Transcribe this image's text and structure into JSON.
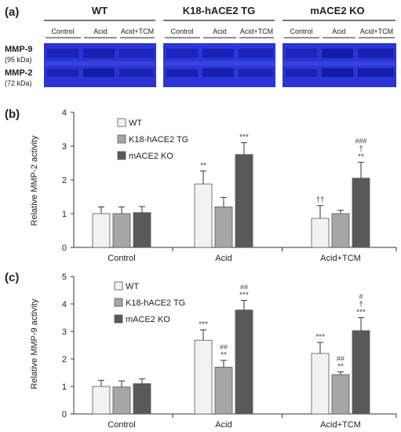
{
  "panel_a": {
    "label": "(a)",
    "groups": [
      "WT",
      "K18-hACE2 TG",
      "mACE2 KO"
    ],
    "lanes": [
      "Control",
      "Acid",
      "Acid+TCM"
    ],
    "bands": [
      {
        "name": "MMP-9",
        "size": "(95 kDa)"
      },
      {
        "name": "MMP-2",
        "size": "(72 kDa)"
      }
    ],
    "gel_color": "#2230d8"
  },
  "chart_data": [
    {
      "type": "bar",
      "panel_label": "(b)",
      "categories": [
        "Control",
        "Acid",
        "Acid+TCM"
      ],
      "ylabel": "Relative MMP-2 activity",
      "xlabel": "",
      "ylim": [
        0,
        4
      ],
      "yticks": [
        "0",
        "1",
        "2",
        "3",
        "4"
      ],
      "grid": false,
      "legend": "top-left",
      "series": [
        {
          "name": "WT",
          "color": "#f2f2f2",
          "values": [
            1.0,
            1.88,
            0.86
          ],
          "errors": [
            0.2,
            0.38,
            0.38
          ],
          "marks": [
            [],
            [
              "**"
            ],
            [
              "††"
            ]
          ]
        },
        {
          "name": "K18-hACE2 TG",
          "color": "#a6a6a6",
          "values": [
            1.0,
            1.2,
            1.0
          ],
          "errors": [
            0.2,
            0.28,
            0.1
          ],
          "marks": [
            [],
            [],
            []
          ]
        },
        {
          "name": "mACE2 KO",
          "color": "#595959",
          "values": [
            1.03,
            2.75,
            2.05
          ],
          "errors": [
            0.18,
            0.35,
            0.47
          ],
          "marks": [
            [],
            [
              "***"
            ],
            [
              "###",
              "†",
              "**"
            ]
          ]
        }
      ]
    },
    {
      "type": "bar",
      "panel_label": "(c)",
      "categories": [
        "Control",
        "Acid",
        "Acid+TCM"
      ],
      "ylabel": "Relative MMP-9 activity",
      "xlabel": "",
      "ylim": [
        0,
        5
      ],
      "yticks": [
        "0",
        "1",
        "2",
        "3",
        "4",
        "5"
      ],
      "grid": false,
      "legend": "top-left",
      "series": [
        {
          "name": "WT",
          "color": "#f2f2f2",
          "values": [
            1.0,
            2.68,
            2.2
          ],
          "errors": [
            0.22,
            0.38,
            0.4
          ],
          "marks": [
            [],
            [
              "***"
            ],
            [
              "***"
            ]
          ]
        },
        {
          "name": "K18-hACE2 TG",
          "color": "#a6a6a6",
          "values": [
            0.98,
            1.7,
            1.43
          ],
          "errors": [
            0.22,
            0.25,
            0.1
          ],
          "marks": [
            [],
            [
              "##",
              "**"
            ],
            [
              "##",
              "**"
            ]
          ]
        },
        {
          "name": "mACE2 KO",
          "color": "#595959",
          "values": [
            1.1,
            3.78,
            3.03
          ],
          "errors": [
            0.18,
            0.35,
            0.47
          ],
          "marks": [
            [],
            [
              "##",
              "***"
            ],
            [
              "#",
              "†",
              "***"
            ]
          ]
        }
      ]
    }
  ]
}
